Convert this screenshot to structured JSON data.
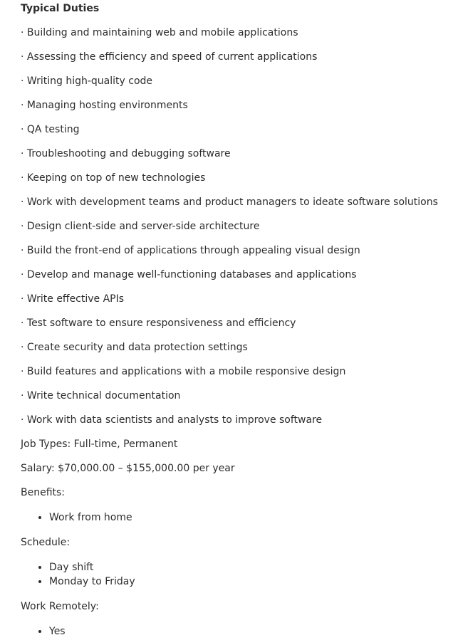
{
  "typical_duties": {
    "heading": "Typical Duties",
    "items": [
      "· Building and maintaining web and mobile applications",
      "· Assessing the efficiency and speed of current applications",
      "· Writing high-quality code",
      "· Managing hosting environments",
      "· QA testing",
      "· Troubleshooting and debugging software",
      "· Keeping on top of new technologies",
      "· Work with development teams and product managers to ideate software solutions",
      "· Design client-side and server-side architecture",
      "· Build the front-end of applications through appealing visual design",
      "· Develop and manage well-functioning databases and applications",
      "· Write effective APIs",
      "· Test software to ensure responsiveness and efficiency",
      "· Create security and data protection settings",
      "· Build features and applications with a mobile responsive design",
      "· Write technical documentation",
      "· Work with data scientists and analysts to improve software"
    ]
  },
  "job_types": "Job Types: Full-time, Permanent",
  "salary": "Salary: $70,000.00 – $155,000.00 per year",
  "benefits": {
    "label": "Benefits:",
    "items": [
      "Work from home"
    ]
  },
  "schedule": {
    "label": "Schedule:",
    "items": [
      "Day shift",
      "Monday to Friday"
    ]
  },
  "work_remotely": {
    "label": "Work Remotely:",
    "items": [
      "Yes"
    ]
  }
}
